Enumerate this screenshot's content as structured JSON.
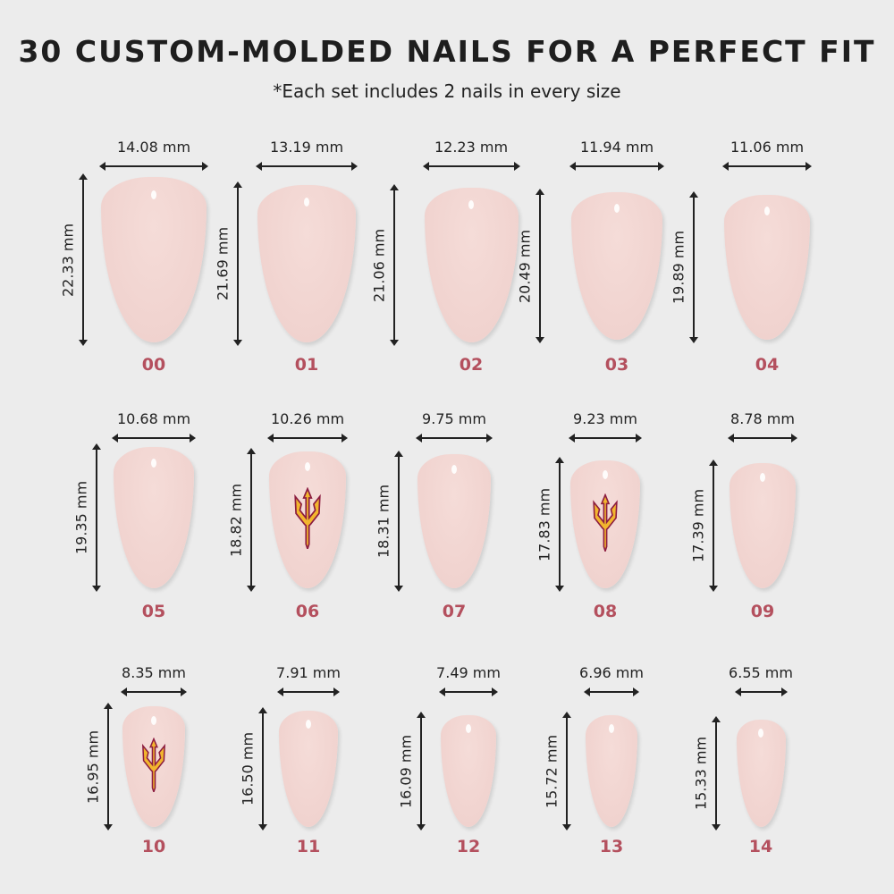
{
  "title": "30 CUSTOM-MOLDED NAILS FOR A PERFECT FIT",
  "subtitle": "*Each set includes 2 nails in every size",
  "colors": {
    "nail_base": "#f3d6d3",
    "tip": "#8e1a3e",
    "size_label": "#b4505e",
    "logo_gold": "#f2b62e",
    "logo_maroon": "#8c1d40"
  },
  "nails": [
    {
      "size": "00",
      "width": "14.08 mm",
      "length": "22.33 mm",
      "logo": false
    },
    {
      "size": "01",
      "width": "13.19 mm",
      "length": "21.69 mm",
      "logo": false
    },
    {
      "size": "02",
      "width": "12.23 mm",
      "length": "21.06 mm",
      "logo": false
    },
    {
      "size": "03",
      "width": "11.94 mm",
      "length": "20.49 mm",
      "logo": false
    },
    {
      "size": "04",
      "width": "11.06 mm",
      "length": "19.89 mm",
      "logo": false
    },
    {
      "size": "05",
      "width": "10.68 mm",
      "length": "19.35 mm",
      "logo": false
    },
    {
      "size": "06",
      "width": "10.26 mm",
      "length": "18.82 mm",
      "logo": true
    },
    {
      "size": "07",
      "width": "9.75 mm",
      "length": "18.31 mm",
      "logo": false
    },
    {
      "size": "08",
      "width": "9.23 mm",
      "length": "17.83 mm",
      "logo": true
    },
    {
      "size": "09",
      "width": "8.78 mm",
      "length": "17.39 mm",
      "logo": false
    },
    {
      "size": "10",
      "width": "8.35 mm",
      "length": "16.95 mm",
      "logo": true
    },
    {
      "size": "11",
      "width": "7.91 mm",
      "length": "16.50 mm",
      "logo": false
    },
    {
      "size": "12",
      "width": "7.49 mm",
      "length": "16.09 mm",
      "logo": false
    },
    {
      "size": "13",
      "width": "6.96 mm",
      "length": "15.72 mm",
      "logo": false
    },
    {
      "size": "14",
      "width": "6.55 mm",
      "length": "15.33 mm",
      "logo": false
    }
  ]
}
